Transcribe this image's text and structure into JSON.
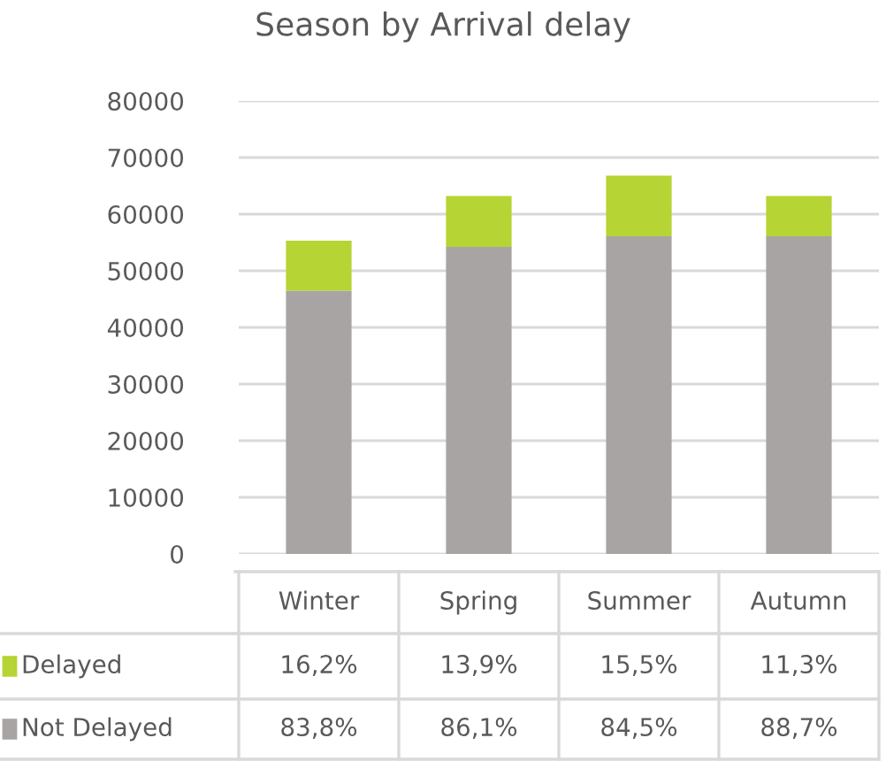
{
  "chart_data": {
    "type": "bar",
    "title": "Season by Arrival delay",
    "stacked": true,
    "categories": [
      "Winter",
      "Spring",
      "Summer",
      "Autumn"
    ],
    "series": [
      {
        "name": "Not Delayed",
        "color": "#a8a4a4",
        "values": [
          46500,
          54200,
          56100,
          56100
        ]
      },
      {
        "name": "Delayed",
        "color": "#b6d433",
        "values": [
          8800,
          9000,
          10700,
          7100
        ]
      }
    ],
    "annotations": [
      "16,2%",
      "13,9%",
      "15,5%",
      "11,3%",
      "83,8%",
      "86,1%",
      "84,5%",
      "88,7%"
    ],
    "ylim": [
      0,
      80000
    ],
    "yticks": [
      0,
      10000,
      20000,
      30000,
      40000,
      50000,
      60000,
      70000,
      80000
    ],
    "grid": "y",
    "legend": "bottom"
  }
}
